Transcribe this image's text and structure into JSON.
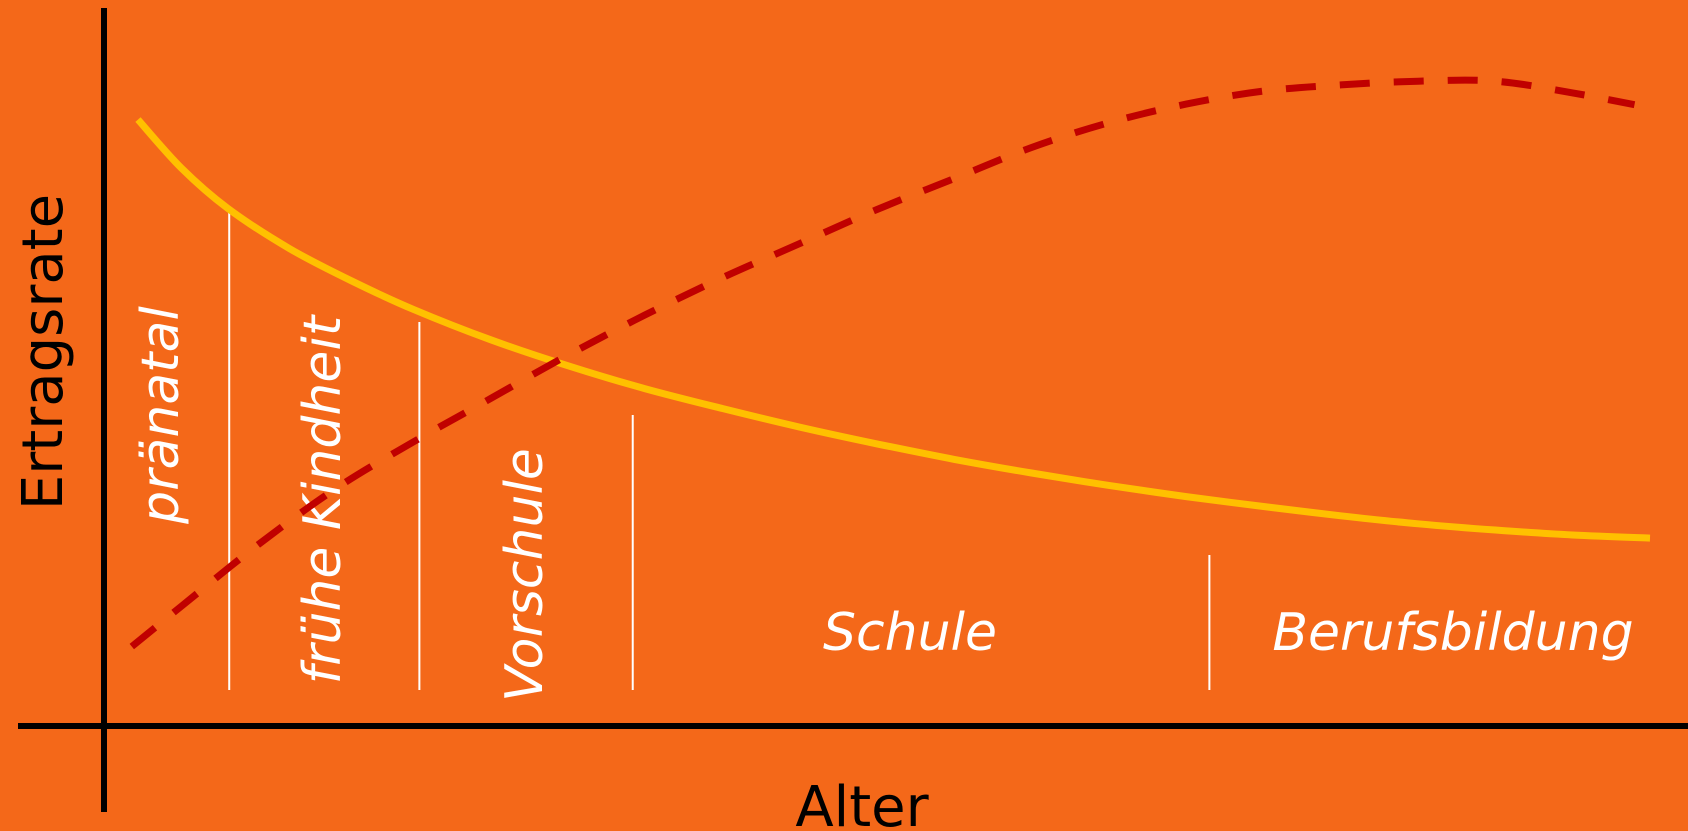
{
  "chart_data": {
    "type": "line",
    "xlabel": "Alter",
    "ylabel": "Ertragsrate",
    "xlim": [
      0,
      100
    ],
    "ylim": [
      0,
      100
    ],
    "grid": false,
    "phases": [
      {
        "label": "pränatal",
        "start": 0,
        "end": 8.1
      },
      {
        "label": "frühe Kindheit",
        "start": 8.1,
        "end": 20.4
      },
      {
        "label": "Vorschule",
        "start": 20.4,
        "end": 34.2
      },
      {
        "label": "Schule",
        "start": 34.2,
        "end": 71.5
      },
      {
        "label": "Berufsbildung",
        "start": 71.5,
        "end": 100
      }
    ],
    "series": [
      {
        "style": "solid",
        "color": "#ffc000",
        "x": [
          2.2,
          5,
          8,
          12,
          16,
          20,
          25,
          30,
          35,
          40,
          45,
          50,
          55,
          60,
          65,
          70,
          75,
          80,
          85,
          90,
          95,
          100
        ],
        "y": [
          92,
          84.2,
          77.7,
          71.2,
          66,
          61.4,
          56.5,
          52.3,
          48.6,
          45.4,
          42.4,
          39.7,
          37.2,
          35,
          33,
          31.2,
          29.6,
          28.1,
          26.8,
          25.8,
          25,
          24.5
        ]
      },
      {
        "style": "dashed",
        "color": "#c00000",
        "x": [
          1.8,
          5,
          10,
          15,
          20,
          25,
          30,
          35,
          40,
          45,
          50,
          55,
          60,
          65,
          70,
          75,
          80,
          85,
          90,
          95,
          99
        ],
        "y": [
          7,
          13.5,
          23.5,
          32.5,
          40,
          47,
          54,
          60.5,
          66.5,
          72,
          77.5,
          82.5,
          87.5,
          91.5,
          94.5,
          96.6,
          97.6,
          98.2,
          98.2,
          96.3,
          94.4
        ]
      }
    ]
  }
}
